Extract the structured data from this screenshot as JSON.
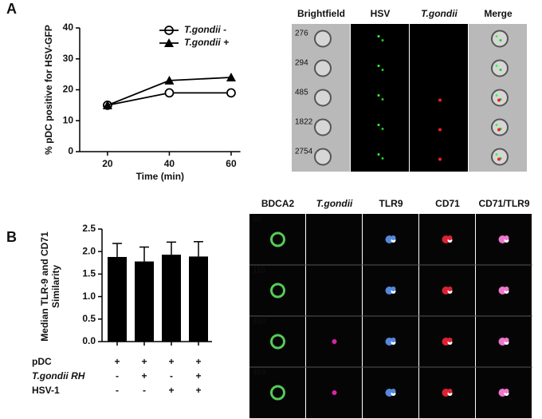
{
  "panels": [
    "A",
    "B"
  ],
  "chart_data": [
    {
      "type": "line",
      "ylabel": "% pDC positive for HSV-GFP",
      "xlabel": "Time (min)",
      "x": [
        20,
        40,
        60
      ],
      "xlim": [
        11,
        63
      ],
      "xticks": [
        20,
        40,
        60
      ],
      "ylim": [
        0,
        40
      ],
      "yticks": [
        0,
        10,
        20,
        30,
        40
      ],
      "legend": "top-right",
      "series": [
        {
          "name": "T.gondii -",
          "color": "#000000",
          "marker": "open-circle",
          "values": [
            15,
            19,
            19
          ]
        },
        {
          "name": "T.gondii +",
          "color": "#000000",
          "marker": "triangle",
          "values": [
            15,
            23,
            24
          ]
        }
      ]
    },
    {
      "type": "bar",
      "ylabel": "Median TLR-9 and CD71 Similarity",
      "categories": [
        null,
        null,
        null,
        null
      ],
      "values": [
        1.88,
        1.78,
        1.93,
        1.89
      ],
      "errors": [
        0.3,
        0.32,
        0.28,
        0.33
      ],
      "color": "#000000",
      "ylim": [
        0,
        2.5
      ],
      "yticks": [
        {
          "value": 0,
          "label": "0.0"
        },
        0.5,
        {
          "value": 1,
          "label": "1.0"
        },
        1.5,
        {
          "value": 2,
          "label": "2.0"
        },
        2.5
      ],
      "conditions": [
        {
          "label": "pDC",
          "marks": [
            "+",
            "+",
            "+",
            "+"
          ]
        },
        {
          "label": "T.gondii RH",
          "marks": [
            "-",
            "+",
            "-",
            "+"
          ]
        },
        {
          "label": "HSV-1",
          "marks": [
            "-",
            "-",
            "+",
            "+"
          ]
        }
      ]
    }
  ],
  "imaging": [
    {
      "columns": [
        "Brightfield",
        "HSV",
        "T.gondii",
        "Merge"
      ],
      "rows": [
        "276",
        "294",
        "485",
        "1822",
        "2754"
      ]
    },
    {
      "columns": [
        "BDCA2",
        "T.gondii",
        "TLR9",
        "CD71",
        "CD71/TLR9"
      ],
      "rows": [
        "88",
        "110",
        "460",
        "469"
      ]
    }
  ]
}
